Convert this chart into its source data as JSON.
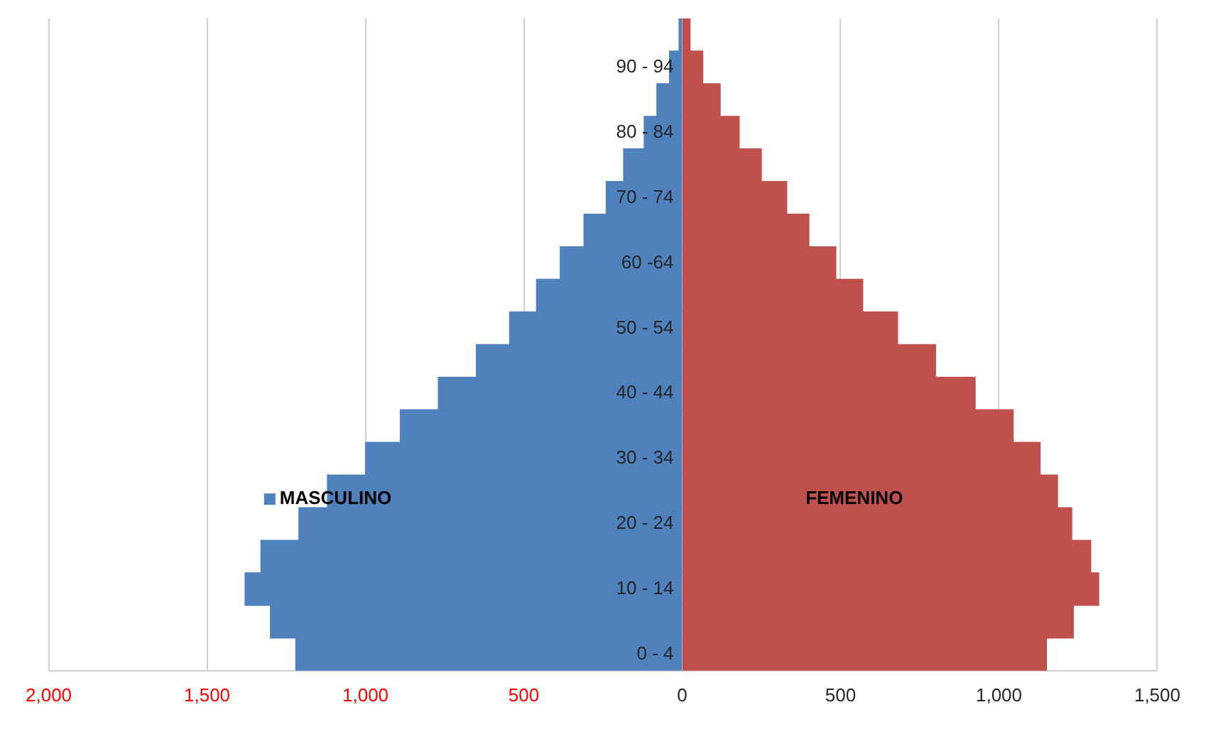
{
  "chart_data": {
    "type": "bar",
    "orientation": "horizontal",
    "stacked": true,
    "categories": [
      null,
      "90 - 94",
      null,
      "80 - 84",
      null,
      "70 - 74",
      null,
      "60 -64",
      null,
      "50 - 54",
      null,
      "40 - 44",
      null,
      "30 - 34",
      null,
      "20 - 24",
      null,
      "10 - 14",
      null,
      "0 - 4"
    ],
    "series": [
      {
        "name": "MASCULINO",
        "color": "#4f81bd",
        "values": [
          -10,
          -40,
          -80,
          -120,
          -185,
          -240,
          -310,
          -385,
          -460,
          -545,
          -650,
          -770,
          -890,
          -1000,
          -1120,
          -1210,
          -1330,
          -1380,
          -1300,
          -1220
        ]
      },
      {
        "name": "FEMENINO",
        "color": "#c0504d",
        "values": [
          25,
          65,
          120,
          180,
          250,
          330,
          400,
          485,
          570,
          680,
          800,
          925,
          1045,
          1130,
          1185,
          1230,
          1290,
          1315,
          1235,
          1150
        ]
      }
    ],
    "xlim": [
      -2000,
      1500
    ],
    "xticks": [
      {
        "value": -2000,
        "label": "2,000"
      },
      {
        "value": -1500,
        "label": "1,500"
      },
      {
        "value": -1000,
        "label": "1,000"
      },
      {
        "value": -500,
        "label": "500"
      },
      0,
      500,
      {
        "value": 1000,
        "label": "1,000"
      },
      {
        "value": 1500,
        "label": "1,500"
      }
    ],
    "grid": "x",
    "legend": "left"
  }
}
